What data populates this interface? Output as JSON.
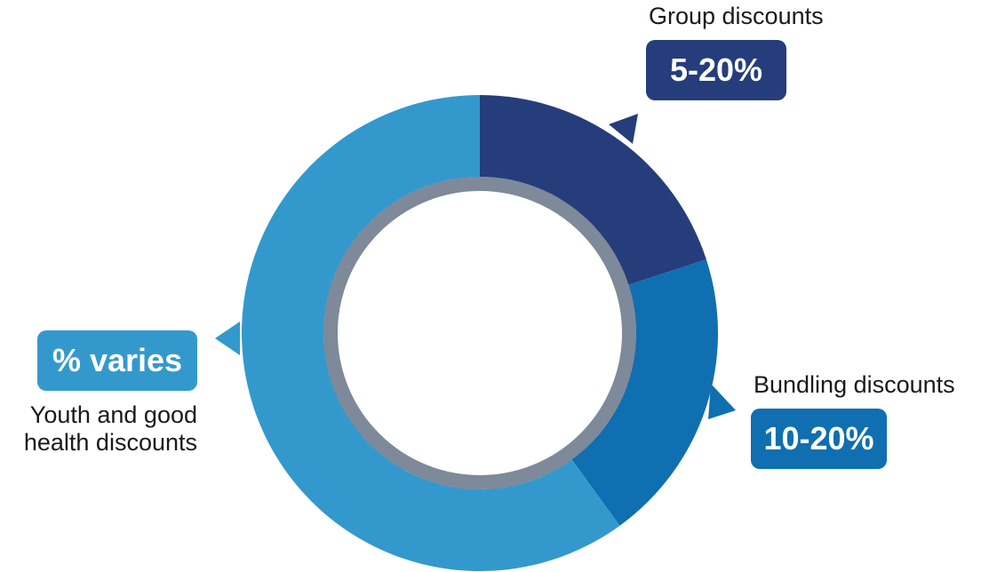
{
  "chart_data": {
    "type": "donut",
    "categories": [
      "Group discounts",
      "Bundling discounts",
      "Youth and good health discounts"
    ],
    "values": [
      20,
      20,
      60
    ],
    "badges": [
      "5-20%",
      "10-20%",
      "% varies"
    ],
    "colors": [
      "#253d7a",
      "#0f6fb0",
      "#3399cc"
    ]
  }
}
